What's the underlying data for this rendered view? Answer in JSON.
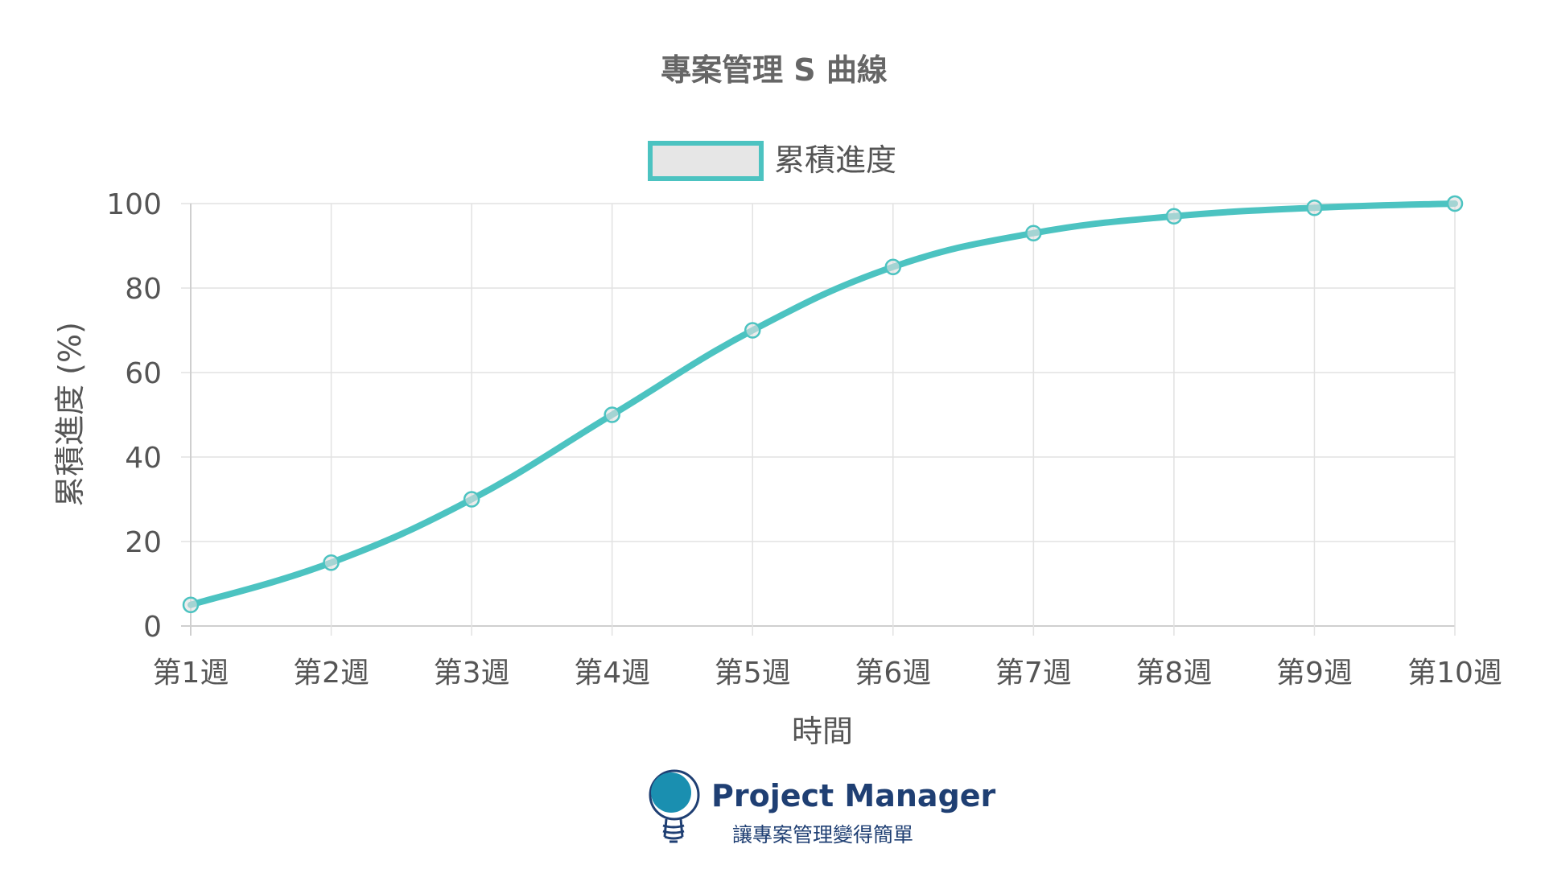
{
  "colors": {
    "series": "#4cc3c1",
    "legend_fill": "#e6e6e6",
    "logo_bulb": "#1a8fb0",
    "logo_text": "#1f3f73"
  },
  "chart_data": {
    "type": "line",
    "title": "專案管理 S 曲線",
    "xlabel": "時間",
    "ylabel": "累積進度 (%)",
    "categories": [
      "第1週",
      "第2週",
      "第3週",
      "第4週",
      "第5週",
      "第6週",
      "第7週",
      "第8週",
      "第9週",
      "第10週"
    ],
    "series": [
      {
        "name": "累積進度",
        "values": [
          5,
          15,
          30,
          50,
          70,
          85,
          93,
          97,
          99,
          100
        ]
      }
    ],
    "ylim": [
      0,
      100
    ],
    "yticks": [
      0,
      20,
      40,
      60,
      80,
      100
    ],
    "grid": true,
    "legend": "top",
    "smooth": true
  },
  "footer": {
    "brand_name": "Project Manager",
    "slogan": "讓專案管理變得簡單",
    "logo_icon": "lightbulb-icon"
  }
}
